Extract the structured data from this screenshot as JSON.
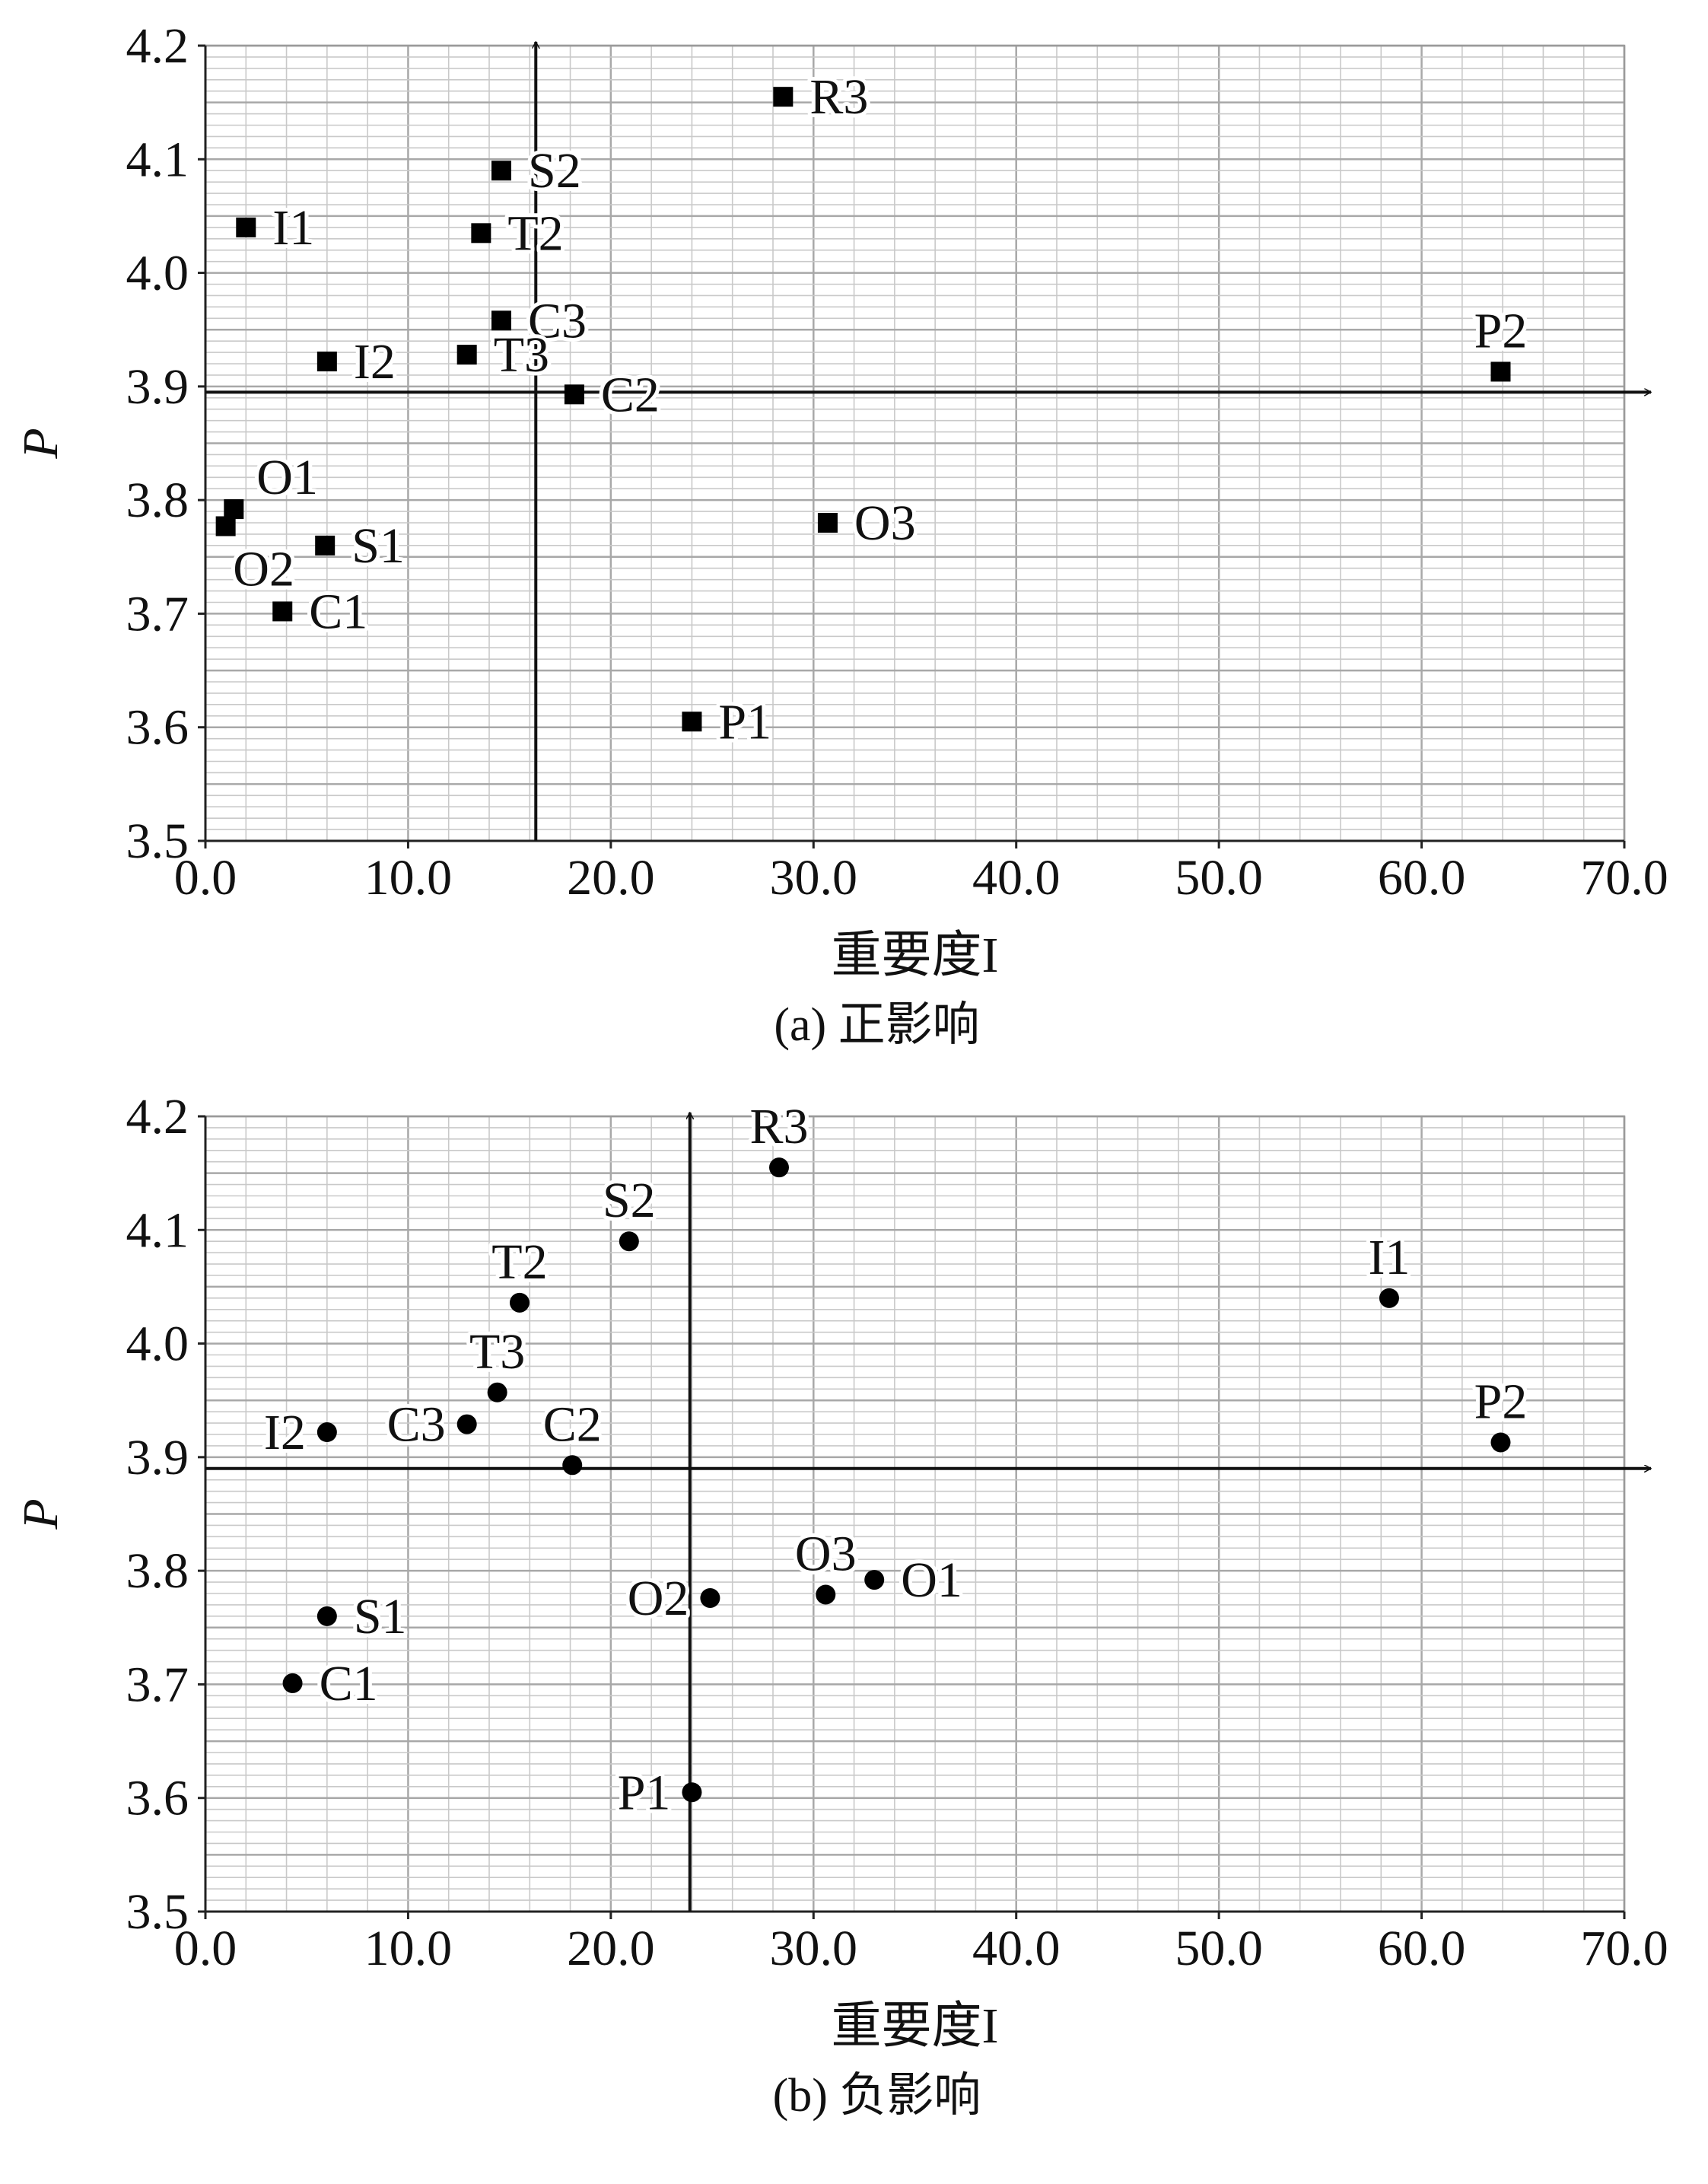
{
  "chart_data": [
    {
      "type": "scatter",
      "marker": "square",
      "caption": "(a) 正影响",
      "xlabel": "重要度I",
      "ylabel": "P",
      "xlim": [
        0,
        70
      ],
      "ylim": [
        3.5,
        4.2
      ],
      "x_ticks": [
        "0.0",
        "10.0",
        "20.0",
        "30.0",
        "40.0",
        "50.0",
        "60.0",
        "70.0"
      ],
      "y_ticks": [
        "3.5",
        "3.6",
        "3.7",
        "3.8",
        "3.9",
        "4.0",
        "4.1",
        "4.2"
      ],
      "grid": true,
      "reference_lines": {
        "x": 16.3,
        "y": 3.895
      },
      "points": [
        {
          "label": "R3",
          "x": 28.5,
          "y": 4.155,
          "label_pos": "right"
        },
        {
          "label": "S2",
          "x": 14.6,
          "y": 4.09,
          "label_pos": "right"
        },
        {
          "label": "I1",
          "x": 2.0,
          "y": 4.04,
          "label_pos": "right"
        },
        {
          "label": "T2",
          "x": 13.6,
          "y": 4.035,
          "label_pos": "right"
        },
        {
          "label": "C3",
          "x": 14.6,
          "y": 3.958,
          "label_pos": "right"
        },
        {
          "label": "I2",
          "x": 6.0,
          "y": 3.922,
          "label_pos": "right"
        },
        {
          "label": "T3",
          "x": 12.9,
          "y": 3.928,
          "label_pos": "right"
        },
        {
          "label": "C2",
          "x": 18.2,
          "y": 3.893,
          "label_pos": "right"
        },
        {
          "label": "P2",
          "x": 63.9,
          "y": 3.913,
          "label_pos": "above"
        },
        {
          "label": "O1",
          "x": 1.4,
          "y": 3.792,
          "label_pos": "above-right"
        },
        {
          "label": "O2",
          "x": 1.0,
          "y": 3.777,
          "label_pos": "below"
        },
        {
          "label": "S1",
          "x": 5.9,
          "y": 3.76,
          "label_pos": "right"
        },
        {
          "label": "C1",
          "x": 3.8,
          "y": 3.702,
          "label_pos": "right"
        },
        {
          "label": "O3",
          "x": 30.7,
          "y": 3.78,
          "label_pos": "right"
        },
        {
          "label": "P1",
          "x": 24.0,
          "y": 3.605,
          "label_pos": "right"
        }
      ]
    },
    {
      "type": "scatter",
      "marker": "circle",
      "caption": "(b) 负影响",
      "xlabel": "重要度I",
      "ylabel": "P",
      "xlim": [
        0,
        70
      ],
      "ylim": [
        3.5,
        4.2
      ],
      "x_ticks": [
        "0.0",
        "10.0",
        "20.0",
        "30.0",
        "40.0",
        "50.0",
        "60.0",
        "70.0"
      ],
      "y_ticks": [
        "3.5",
        "3.6",
        "3.7",
        "3.8",
        "3.9",
        "4.0",
        "4.1",
        "4.2"
      ],
      "grid": true,
      "reference_lines": {
        "x": 23.9,
        "y": 3.89
      },
      "points": [
        {
          "label": "R3",
          "x": 28.3,
          "y": 4.155,
          "label_pos": "above"
        },
        {
          "label": "S2",
          "x": 20.9,
          "y": 4.09,
          "label_pos": "above"
        },
        {
          "label": "T2",
          "x": 15.5,
          "y": 4.036,
          "label_pos": "above"
        },
        {
          "label": "T3",
          "x": 14.4,
          "y": 3.957,
          "label_pos": "above"
        },
        {
          "label": "C3",
          "x": 12.9,
          "y": 3.929,
          "label_pos": "left"
        },
        {
          "label": "C2",
          "x": 18.1,
          "y": 3.893,
          "label_pos": "above"
        },
        {
          "label": "I2",
          "x": 6.0,
          "y": 3.922,
          "label_pos": "left"
        },
        {
          "label": "I1",
          "x": 58.4,
          "y": 4.04,
          "label_pos": "above"
        },
        {
          "label": "P2",
          "x": 63.9,
          "y": 3.913,
          "label_pos": "above"
        },
        {
          "label": "O3",
          "x": 30.6,
          "y": 3.779,
          "label_pos": "above"
        },
        {
          "label": "O1",
          "x": 33.0,
          "y": 3.792,
          "label_pos": "right"
        },
        {
          "label": "O2",
          "x": 24.9,
          "y": 3.776,
          "label_pos": "left"
        },
        {
          "label": "S1",
          "x": 6.0,
          "y": 3.76,
          "label_pos": "right"
        },
        {
          "label": "C1",
          "x": 4.3,
          "y": 3.701,
          "label_pos": "right"
        },
        {
          "label": "P1",
          "x": 24.0,
          "y": 3.605,
          "label_pos": "left"
        }
      ]
    }
  ]
}
